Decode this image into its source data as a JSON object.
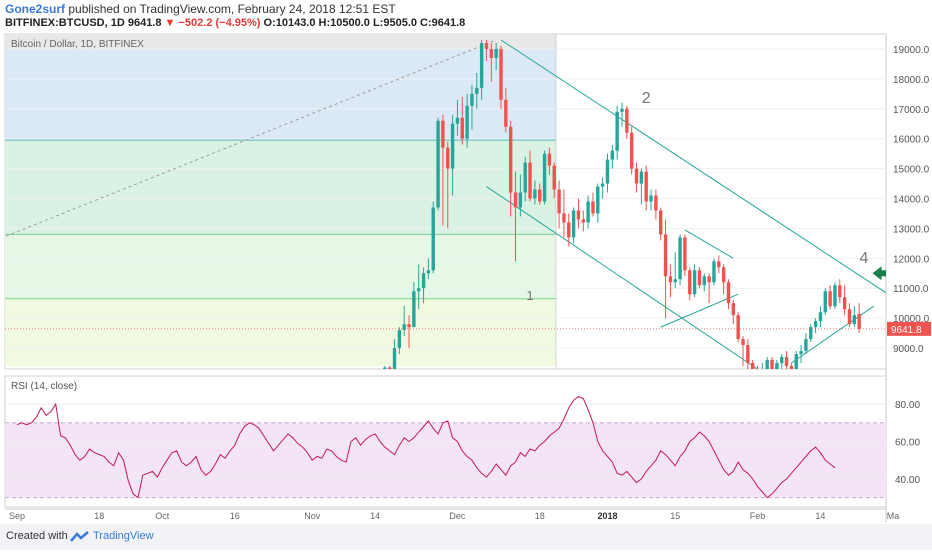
{
  "header": {
    "author": "Gone2surf",
    "published": "published on TradingView.com, February 24, 2018 12:51 EST",
    "symbol_line": "BITFINEX:BTCUSD, 1D 9641.8",
    "change": "▼ −502.2 (−4.95%)",
    "ohlc": "O:10143.0 H:10500.0 L:9505.0 C:9641.8"
  },
  "footer": {
    "created_with": "Created with",
    "brand": "TradingView"
  },
  "colors": {
    "up": "#26a69a",
    "down": "#ef5350",
    "rsi_line": "#c2185b",
    "rsi_band": "#f3e5f5",
    "channel": "#26a69a",
    "trend": "#9e9e9e",
    "fib_zones": [
      "#e8e8e8",
      "#dbe9f6",
      "#d9f2e4",
      "#e6f7e6",
      "#f0fae0"
    ]
  },
  "chart_data": [
    {
      "type": "candlestick",
      "title": "Bitcoin / Dollar, 1D, BITFINEX",
      "ylim": [
        8300,
        19500
      ],
      "yticks": [
        9000,
        10000,
        11000,
        12000,
        13000,
        14000,
        15000,
        16000,
        17000,
        18000,
        19000
      ],
      "ytick_labels": [
        "9000.0",
        "10000.0",
        "11000.0",
        "12000.0",
        "13000.0",
        "14000.0",
        "15000.0",
        "16000.0",
        "17000.0",
        "18000.0",
        "19000.0"
      ],
      "last_price_label": "9641.8",
      "last_price": 9641.8,
      "annotations": [
        {
          "text": "1",
          "day": 106,
          "price": 10600
        },
        {
          "text": "2",
          "day": 130,
          "price": 17200
        },
        {
          "text": "4",
          "day": 175,
          "price": 11850
        }
      ],
      "fib_levels": [
        19000,
        15950,
        12800,
        10650,
        8400
      ],
      "trend_line": {
        "from": [
          -23,
          11400
        ],
        "to": [
          99,
          19300
        ]
      },
      "channels": [
        {
          "from": [
            100,
            19300
          ],
          "to": [
            180,
            10800
          ]
        },
        {
          "from": [
            97,
            14400
          ],
          "to": [
            153,
            8300
          ]
        },
        {
          "from": [
            138,
            12950
          ],
          "to": [
            148,
            12000
          ]
        },
        {
          "from": [
            133,
            9700
          ],
          "to": [
            149,
            10800
          ]
        },
        {
          "from": [
            160,
            8500
          ],
          "to": [
            177,
            10400
          ]
        }
      ],
      "candles": [
        {
          "day": 76,
          "o": 8290,
          "h": 8400,
          "l": 8100,
          "c": 8350
        },
        {
          "day": 77,
          "o": 8350,
          "h": 8400,
          "l": 8200,
          "c": 8300
        },
        {
          "day": 78,
          "o": 8300,
          "h": 9300,
          "l": 8300,
          "c": 9000
        },
        {
          "day": 79,
          "o": 9000,
          "h": 9700,
          "l": 8800,
          "c": 9600
        },
        {
          "day": 80,
          "o": 9600,
          "h": 10400,
          "l": 9400,
          "c": 9800
        },
        {
          "day": 81,
          "o": 9800,
          "h": 10100,
          "l": 9000,
          "c": 9700
        },
        {
          "day": 82,
          "o": 9700,
          "h": 11200,
          "l": 9700,
          "c": 10900
        },
        {
          "day": 83,
          "o": 10900,
          "h": 11800,
          "l": 10300,
          "c": 11000
        },
        {
          "day": 84,
          "o": 11000,
          "h": 11700,
          "l": 10500,
          "c": 11500
        },
        {
          "day": 85,
          "o": 11500,
          "h": 12000,
          "l": 11300,
          "c": 11600
        },
        {
          "day": 86,
          "o": 11600,
          "h": 13900,
          "l": 11500,
          "c": 13700
        },
        {
          "day": 87,
          "o": 13700,
          "h": 16700,
          "l": 13600,
          "c": 16600
        },
        {
          "day": 88,
          "o": 16600,
          "h": 16800,
          "l": 13100,
          "c": 15700
        },
        {
          "day": 89,
          "o": 15700,
          "h": 15900,
          "l": 13000,
          "c": 15000
        },
        {
          "day": 90,
          "o": 15000,
          "h": 16800,
          "l": 14100,
          "c": 16500
        },
        {
          "day": 91,
          "o": 16500,
          "h": 17300,
          "l": 16100,
          "c": 16700
        },
        {
          "day": 92,
          "o": 16700,
          "h": 17400,
          "l": 15800,
          "c": 16000
        },
        {
          "day": 93,
          "o": 16000,
          "h": 17500,
          "l": 15700,
          "c": 17100
        },
        {
          "day": 94,
          "o": 17100,
          "h": 17800,
          "l": 16300,
          "c": 17500
        },
        {
          "day": 95,
          "o": 17500,
          "h": 18200,
          "l": 17000,
          "c": 17700
        },
        {
          "day": 96,
          "o": 17700,
          "h": 19300,
          "l": 17300,
          "c": 19200
        },
        {
          "day": 97,
          "o": 19200,
          "h": 19300,
          "l": 18600,
          "c": 19000
        },
        {
          "day": 98,
          "o": 19000,
          "h": 19200,
          "l": 17900,
          "c": 18700
        },
        {
          "day": 99,
          "o": 18700,
          "h": 19200,
          "l": 18300,
          "c": 19000
        },
        {
          "day": 100,
          "o": 19000,
          "h": 19100,
          "l": 17000,
          "c": 17300
        },
        {
          "day": 101,
          "o": 17300,
          "h": 17700,
          "l": 16200,
          "c": 16400
        },
        {
          "day": 102,
          "o": 16400,
          "h": 16600,
          "l": 13400,
          "c": 14200
        },
        {
          "day": 103,
          "o": 14200,
          "h": 14900,
          "l": 11900,
          "c": 13700
        },
        {
          "day": 104,
          "o": 13700,
          "h": 14800,
          "l": 13400,
          "c": 14200
        },
        {
          "day": 105,
          "o": 14200,
          "h": 15400,
          "l": 13900,
          "c": 15200
        },
        {
          "day": 106,
          "o": 15200,
          "h": 15600,
          "l": 13900,
          "c": 14000
        },
        {
          "day": 107,
          "o": 14000,
          "h": 14600,
          "l": 13800,
          "c": 14300
        },
        {
          "day": 108,
          "o": 14300,
          "h": 14500,
          "l": 13800,
          "c": 13900
        },
        {
          "day": 109,
          "o": 13900,
          "h": 15600,
          "l": 13800,
          "c": 15500
        },
        {
          "day": 110,
          "o": 15500,
          "h": 15700,
          "l": 14800,
          "c": 15100
        },
        {
          "day": 111,
          "o": 15100,
          "h": 15200,
          "l": 14000,
          "c": 14300
        },
        {
          "day": 112,
          "o": 14300,
          "h": 14600,
          "l": 13000,
          "c": 13500
        },
        {
          "day": 113,
          "o": 13500,
          "h": 14300,
          "l": 12700,
          "c": 13200
        },
        {
          "day": 114,
          "o": 13200,
          "h": 13500,
          "l": 12400,
          "c": 12700
        },
        {
          "day": 115,
          "o": 12700,
          "h": 13700,
          "l": 12500,
          "c": 13600
        },
        {
          "day": 116,
          "o": 13600,
          "h": 14000,
          "l": 13000,
          "c": 13300
        },
        {
          "day": 117,
          "o": 13300,
          "h": 13600,
          "l": 12900,
          "c": 13200
        },
        {
          "day": 118,
          "o": 13200,
          "h": 14100,
          "l": 13000,
          "c": 13900
        },
        {
          "day": 119,
          "o": 13900,
          "h": 14200,
          "l": 13400,
          "c": 13500
        },
        {
          "day": 120,
          "o": 13500,
          "h": 14500,
          "l": 13200,
          "c": 14400
        },
        {
          "day": 121,
          "o": 14400,
          "h": 14700,
          "l": 14000,
          "c": 14500
        },
        {
          "day": 122,
          "o": 14500,
          "h": 15500,
          "l": 14200,
          "c": 15300
        },
        {
          "day": 123,
          "o": 15300,
          "h": 15800,
          "l": 15000,
          "c": 15600
        },
        {
          "day": 124,
          "o": 15600,
          "h": 17100,
          "l": 15300,
          "c": 16900
        },
        {
          "day": 125,
          "o": 16900,
          "h": 17200,
          "l": 16400,
          "c": 17000
        },
        {
          "day": 126,
          "o": 17000,
          "h": 17100,
          "l": 16000,
          "c": 16200
        },
        {
          "day": 127,
          "o": 16200,
          "h": 16400,
          "l": 14800,
          "c": 15000
        },
        {
          "day": 128,
          "o": 15000,
          "h": 15200,
          "l": 14200,
          "c": 14500
        },
        {
          "day": 129,
          "o": 14500,
          "h": 15000,
          "l": 13800,
          "c": 14900
        },
        {
          "day": 130,
          "o": 14900,
          "h": 15100,
          "l": 13600,
          "c": 13900
        },
        {
          "day": 131,
          "o": 13900,
          "h": 14300,
          "l": 13600,
          "c": 14100
        },
        {
          "day": 132,
          "o": 14100,
          "h": 14300,
          "l": 13300,
          "c": 13600
        },
        {
          "day": 133,
          "o": 13600,
          "h": 13700,
          "l": 12600,
          "c": 12800
        },
        {
          "day": 134,
          "o": 12800,
          "h": 13300,
          "l": 10000,
          "c": 11400
        },
        {
          "day": 135,
          "o": 11400,
          "h": 11800,
          "l": 10700,
          "c": 11200
        },
        {
          "day": 136,
          "o": 11200,
          "h": 12200,
          "l": 11000,
          "c": 11300
        },
        {
          "day": 137,
          "o": 11300,
          "h": 12800,
          "l": 11100,
          "c": 12700
        },
        {
          "day": 138,
          "o": 12700,
          "h": 12800,
          "l": 11400,
          "c": 11600
        },
        {
          "day": 139,
          "o": 11600,
          "h": 11700,
          "l": 10600,
          "c": 10800
        },
        {
          "day": 140,
          "o": 10800,
          "h": 11800,
          "l": 10700,
          "c": 11600
        },
        {
          "day": 141,
          "o": 11600,
          "h": 11700,
          "l": 11000,
          "c": 11100
        },
        {
          "day": 142,
          "o": 11100,
          "h": 11500,
          "l": 10900,
          "c": 11400
        },
        {
          "day": 143,
          "o": 11400,
          "h": 11500,
          "l": 10500,
          "c": 11200
        },
        {
          "day": 144,
          "o": 11200,
          "h": 12000,
          "l": 11100,
          "c": 11900
        },
        {
          "day": 145,
          "o": 11900,
          "h": 12100,
          "l": 11500,
          "c": 11700
        },
        {
          "day": 146,
          "o": 11700,
          "h": 11800,
          "l": 10800,
          "c": 11200
        },
        {
          "day": 147,
          "o": 11200,
          "h": 11300,
          "l": 10300,
          "c": 10500
        },
        {
          "day": 148,
          "o": 10500,
          "h": 10600,
          "l": 9800,
          "c": 10100
        },
        {
          "day": 149,
          "o": 10100,
          "h": 10200,
          "l": 9200,
          "c": 9300
        },
        {
          "day": 150,
          "o": 9300,
          "h": 9400,
          "l": 8400,
          "c": 9100
        },
        {
          "day": 151,
          "o": 9100,
          "h": 9300,
          "l": 8300,
          "c": 8500
        },
        {
          "day": 152,
          "o": 8500,
          "h": 8600,
          "l": 8200,
          "c": 8300
        },
        {
          "day": 153,
          "o": 8300,
          "h": 8400,
          "l": 8000,
          "c": 8100
        },
        {
          "day": 154,
          "o": 8100,
          "h": 8500,
          "l": 7900,
          "c": 8200
        },
        {
          "day": 155,
          "o": 8200,
          "h": 8700,
          "l": 8000,
          "c": 8600
        },
        {
          "day": 156,
          "o": 8600,
          "h": 8700,
          "l": 8100,
          "c": 8300
        },
        {
          "day": 157,
          "o": 8300,
          "h": 8600,
          "l": 8200,
          "c": 8500
        },
        {
          "day": 158,
          "o": 8500,
          "h": 8800,
          "l": 8300,
          "c": 8700
        },
        {
          "day": 159,
          "o": 8700,
          "h": 8900,
          "l": 8200,
          "c": 8400
        },
        {
          "day": 160,
          "o": 8400,
          "h": 8500,
          "l": 8100,
          "c": 8300
        },
        {
          "day": 161,
          "o": 8300,
          "h": 8900,
          "l": 8300,
          "c": 8800
        },
        {
          "day": 162,
          "o": 8800,
          "h": 9100,
          "l": 8500,
          "c": 8900
        },
        {
          "day": 163,
          "o": 8900,
          "h": 9500,
          "l": 8800,
          "c": 9300
        },
        {
          "day": 164,
          "o": 9300,
          "h": 9800,
          "l": 9200,
          "c": 9700
        },
        {
          "day": 165,
          "o": 9700,
          "h": 10000,
          "l": 9500,
          "c": 9900
        },
        {
          "day": 166,
          "o": 9900,
          "h": 10400,
          "l": 9700,
          "c": 10200
        },
        {
          "day": 167,
          "o": 10200,
          "h": 11000,
          "l": 10100,
          "c": 10900
        },
        {
          "day": 168,
          "o": 10900,
          "h": 11100,
          "l": 10300,
          "c": 10400
        },
        {
          "day": 169,
          "o": 10400,
          "h": 11200,
          "l": 10300,
          "c": 11100
        },
        {
          "day": 170,
          "o": 11100,
          "h": 11300,
          "l": 10500,
          "c": 10700
        },
        {
          "day": 171,
          "o": 10700,
          "h": 11100,
          "l": 10100,
          "c": 10300
        },
        {
          "day": 172,
          "o": 10300,
          "h": 10500,
          "l": 9700,
          "c": 9800
        },
        {
          "day": 173,
          "o": 9800,
          "h": 10400,
          "l": 9700,
          "c": 10100
        },
        {
          "day": 174,
          "o": 10143,
          "h": 10500,
          "l": 9505,
          "c": 9641.8
        }
      ]
    },
    {
      "type": "line",
      "title": "RSI (14, close)",
      "ylim": [
        25,
        95
      ],
      "yticks": [
        40,
        60,
        80
      ],
      "ytick_labels": [
        "40.00",
        "60.00",
        "80.00"
      ],
      "bands": [
        30,
        70
      ],
      "x_labels": [
        {
          "text": "Sep",
          "day": 0
        },
        {
          "text": "18",
          "day": 17
        },
        {
          "text": "Oct",
          "day": 30
        },
        {
          "text": "16",
          "day": 45
        },
        {
          "text": "Nov",
          "day": 61
        },
        {
          "text": "14",
          "day": 74
        },
        {
          "text": "Dec",
          "day": 91
        },
        {
          "text": "18",
          "day": 108
        },
        {
          "text": "2018",
          "day": 122
        },
        {
          "text": "15",
          "day": 136
        },
        {
          "text": "Feb",
          "day": 153
        },
        {
          "text": "14",
          "day": 166
        },
        {
          "text": "Ma",
          "day": 181
        }
      ],
      "values": [
        69,
        70,
        69,
        70,
        73,
        78,
        74,
        76,
        80,
        63,
        62,
        58,
        53,
        50,
        52,
        56,
        54,
        53,
        52,
        49,
        47,
        54,
        50,
        39,
        32,
        30,
        42,
        43,
        44,
        41,
        46,
        50,
        54,
        55,
        49,
        47,
        49,
        52,
        45,
        42,
        44,
        48,
        53,
        51,
        55,
        58,
        64,
        68,
        70,
        69,
        67,
        63,
        59,
        55,
        58,
        61,
        64,
        62,
        59,
        57,
        54,
        50,
        52,
        51,
        56,
        55,
        52,
        50,
        49,
        60,
        62,
        58,
        61,
        63,
        64,
        60,
        57,
        55,
        53,
        58,
        62,
        60,
        62,
        65,
        68,
        71,
        67,
        64,
        70,
        71,
        62,
        60,
        55,
        52,
        50,
        46,
        43,
        41,
        44,
        48,
        45,
        42,
        47,
        49,
        54,
        52,
        56,
        55,
        58,
        60,
        63,
        65,
        67,
        72,
        78,
        82,
        84,
        83,
        77,
        70,
        60,
        55,
        52,
        49,
        43,
        42,
        44,
        41,
        38,
        40,
        44,
        47,
        50,
        55,
        53,
        50,
        47,
        52,
        55,
        60,
        62,
        65,
        63,
        60,
        55,
        50,
        45,
        42,
        44,
        49,
        45,
        43,
        40,
        36,
        33,
        30,
        32,
        35,
        38,
        40,
        43,
        46,
        49,
        52,
        55,
        57,
        54,
        50,
        48,
        46
      ]
    }
  ]
}
